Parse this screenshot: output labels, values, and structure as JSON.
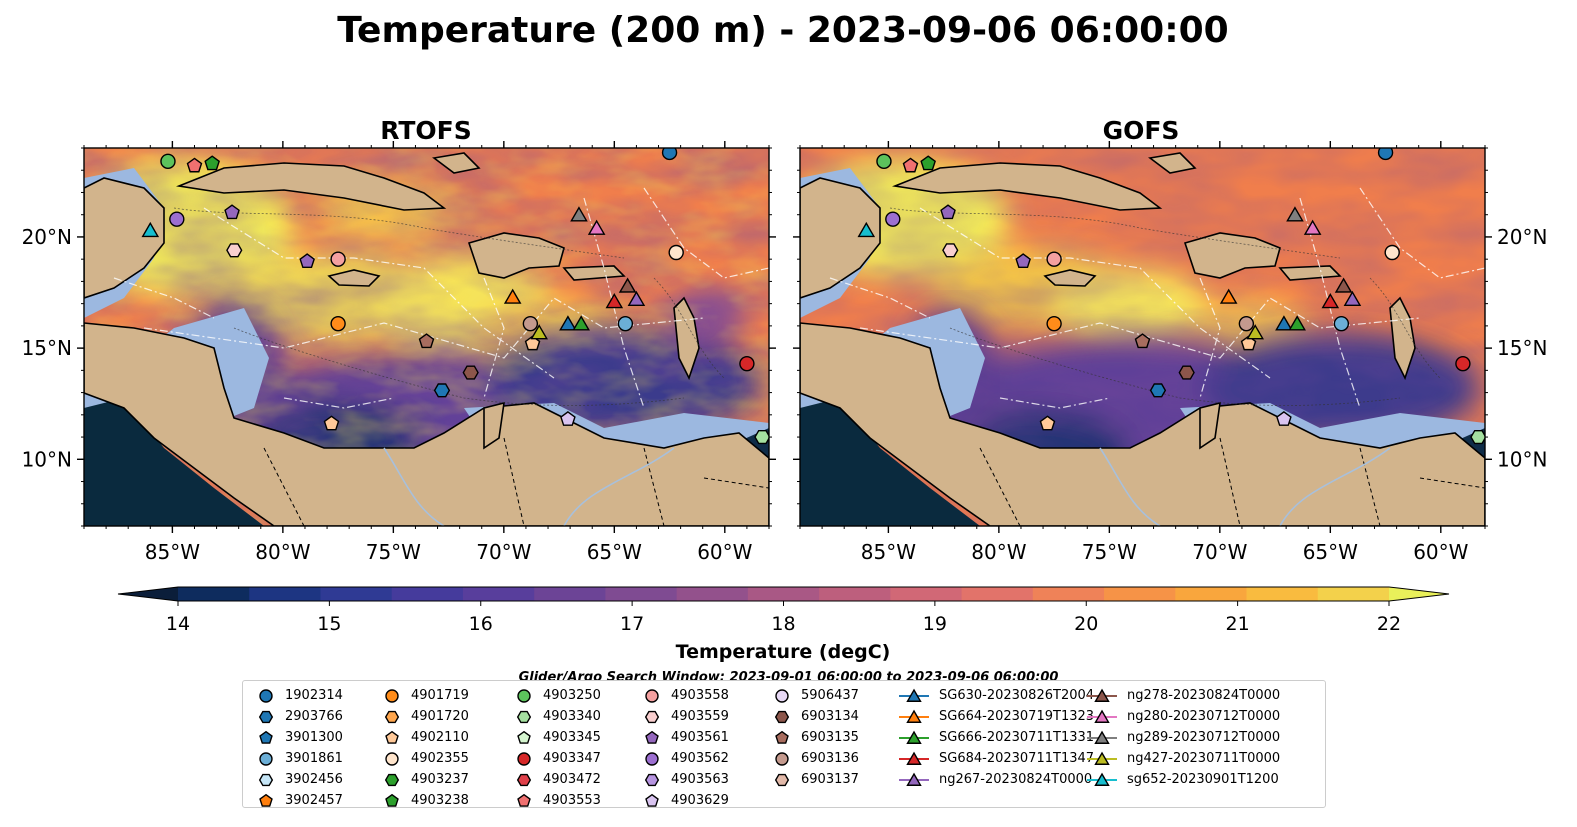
{
  "title": "Temperature (200 m) - 2023-09-06 06:00:00",
  "panels": [
    {
      "title": "RTOFS"
    },
    {
      "title": "GOFS"
    }
  ],
  "map": {
    "lon_range": [
      -89,
      -58
    ],
    "lat_range": [
      7,
      24
    ],
    "lon_ticks": [
      -85,
      -80,
      -75,
      -70,
      -65,
      -60
    ],
    "lon_tick_labels": [
      "85°W",
      "80°W",
      "75°W",
      "70°W",
      "65°W",
      "60°W"
    ],
    "lat_ticks": [
      10,
      15,
      20
    ],
    "lat_tick_labels": [
      "10°N",
      "15°N",
      "20°N"
    ],
    "colors": {
      "land": "#d2b48c",
      "shelf": "#9cb8e0",
      "deep_cold": "#0a2a3e"
    }
  },
  "colorbar": {
    "label": "Temperature (degC)",
    "ticks": [
      14,
      15,
      16,
      17,
      18,
      19,
      20,
      21,
      22
    ],
    "tick_labels": [
      "14",
      "15",
      "16",
      "17",
      "18",
      "19",
      "20",
      "21",
      "22"
    ],
    "colors": [
      "#0b1e3a",
      "#0e2c5e",
      "#1d3582",
      "#2f3a94",
      "#453b9c",
      "#583e9c",
      "#6c4496",
      "#7f4b92",
      "#93518c",
      "#a95885",
      "#bd5f7d",
      "#d16876",
      "#e2736a",
      "#ef8258",
      "#f69347",
      "#f9a63d",
      "#f9bb3f",
      "#f3d14b",
      "#e9f05a"
    ],
    "extend": "both"
  },
  "search_window": "Glider/Argo Search Window: 2023-09-01 06:00:00 to 2023-09-06 06:00:00",
  "legend": [
    {
      "label": "1902314",
      "marker": "circle",
      "color": "#1f77b4"
    },
    {
      "label": "2903766",
      "marker": "hexagon",
      "color": "#1f77b4"
    },
    {
      "label": "3901300",
      "marker": "pentagon",
      "color": "#1f77b4"
    },
    {
      "label": "3901861",
      "marker": "circle",
      "color": "#6baed6"
    },
    {
      "label": "3902456",
      "marker": "hexagon",
      "color": "#c6e6f7"
    },
    {
      "label": "3902457",
      "marker": "pentagon",
      "color": "#ff7f0e"
    },
    {
      "label": "4901719",
      "marker": "circle",
      "color": "#ff8c1a"
    },
    {
      "label": "4901720",
      "marker": "hexagon",
      "color": "#ffa64d"
    },
    {
      "label": "4902110",
      "marker": "pentagon",
      "color": "#ffc999"
    },
    {
      "label": "4902355",
      "marker": "circle",
      "color": "#ffe5cc"
    },
    {
      "label": "4903237",
      "marker": "hexagon",
      "color": "#2ca02c"
    },
    {
      "label": "4903238",
      "marker": "pentagon",
      "color": "#2ca02c"
    },
    {
      "label": "4903250",
      "marker": "circle",
      "color": "#5cc25c"
    },
    {
      "label": "4903340",
      "marker": "hexagon",
      "color": "#a5e0a0"
    },
    {
      "label": "4903345",
      "marker": "pentagon",
      "color": "#d5f5cf"
    },
    {
      "label": "4903347",
      "marker": "circle",
      "color": "#d62728"
    },
    {
      "label": "4903472",
      "marker": "hexagon",
      "color": "#e0404a"
    },
    {
      "label": "4903553",
      "marker": "pentagon",
      "color": "#f07070"
    },
    {
      "label": "4903558",
      "marker": "circle",
      "color": "#f4a0a0"
    },
    {
      "label": "4903559",
      "marker": "hexagon",
      "color": "#f9cfcf"
    },
    {
      "label": "4903561",
      "marker": "pentagon",
      "color": "#9467bd"
    },
    {
      "label": "4903562",
      "marker": "circle",
      "color": "#9c6fd0"
    },
    {
      "label": "4903563",
      "marker": "hexagon",
      "color": "#b694e0"
    },
    {
      "label": "4903629",
      "marker": "pentagon",
      "color": "#d9c4f0"
    },
    {
      "label": "5906437",
      "marker": "circle",
      "color": "#e7d8f5"
    },
    {
      "label": "6903134",
      "marker": "hexagon",
      "color": "#8c564b"
    },
    {
      "label": "6903135",
      "marker": "pentagon",
      "color": "#a86d5f"
    },
    {
      "label": "6903136",
      "marker": "circle",
      "color": "#c49a8e"
    },
    {
      "label": "6903137",
      "marker": "hexagon",
      "color": "#e2b9a9"
    },
    {
      "label": "SG630-20230826T2004",
      "marker": "triangle",
      "color": "#1f77b4"
    },
    {
      "label": "SG664-20230719T1323",
      "marker": "triangle",
      "color": "#ff7f0e"
    },
    {
      "label": "SG666-20230711T1331",
      "marker": "triangle",
      "color": "#2ca02c"
    },
    {
      "label": "SG684-20230711T1347",
      "marker": "triangle",
      "color": "#d62728"
    },
    {
      "label": "ng267-20230824T0000",
      "marker": "triangle",
      "color": "#9467bd"
    },
    {
      "label": "ng278-20230824T0000",
      "marker": "triangle",
      "color": "#8c564b"
    },
    {
      "label": "ng280-20230712T0000",
      "marker": "triangle",
      "color": "#e377c2"
    },
    {
      "label": "ng289-20230712T0000",
      "marker": "triangle",
      "color": "#7f7f7f"
    },
    {
      "label": "ng427-20230711T0000",
      "marker": "triangle",
      "color": "#bcbd22"
    },
    {
      "label": "sg652-20230901T1200",
      "marker": "triangle",
      "color": "#17becf"
    }
  ],
  "observations": [
    {
      "id": "1902314",
      "lon": -62.5,
      "lat": 23.8
    },
    {
      "id": "3901861",
      "lon": -64.5,
      "lat": 16.1
    },
    {
      "id": "4902355",
      "lon": -62.2,
      "lat": 19.3
    },
    {
      "id": "4903250",
      "lon": -85.2,
      "lat": 23.4
    },
    {
      "id": "4903238",
      "lon": -83.2,
      "lat": 23.3
    },
    {
      "id": "4903553",
      "lon": -84.0,
      "lat": 23.2
    },
    {
      "id": "4903562",
      "lon": -84.8,
      "lat": 20.8
    },
    {
      "id": "4903561",
      "lon": -82.3,
      "lat": 21.1
    },
    {
      "id": "4903559",
      "lon": -82.2,
      "lat": 19.4
    },
    {
      "id": "4903561",
      "lon": -78.9,
      "lat": 18.9
    },
    {
      "id": "4903558",
      "lon": -77.5,
      "lat": 19.0
    },
    {
      "id": "4901719",
      "lon": -77.5,
      "lat": 16.1
    },
    {
      "id": "4902110",
      "lon": -77.8,
      "lat": 11.6
    },
    {
      "id": "6903136",
      "lon": -68.8,
      "lat": 16.1
    },
    {
      "id": "4902110",
      "lon": -68.7,
      "lat": 15.2
    },
    {
      "id": "6903135",
      "lon": -73.5,
      "lat": 15.3
    },
    {
      "id": "6903134",
      "lon": -71.5,
      "lat": 13.9
    },
    {
      "id": "2903766",
      "lon": -72.8,
      "lat": 13.1
    },
    {
      "id": "4903629",
      "lon": -67.1,
      "lat": 11.8
    },
    {
      "id": "4903340",
      "lon": -58.3,
      "lat": 11.0
    },
    {
      "id": "4903347",
      "lon": -59.0,
      "lat": 14.3
    },
    {
      "id": "sg652-20230901T1200",
      "lon": -86.0,
      "lat": 20.3
    },
    {
      "id": "ng289-20230712T0000",
      "lon": -66.6,
      "lat": 21.0
    },
    {
      "id": "ng280-20230712T0000",
      "lon": -65.8,
      "lat": 20.4
    },
    {
      "id": "SG664-20230719T1323",
      "lon": -69.6,
      "lat": 17.3
    },
    {
      "id": "ng427-20230711T0000",
      "lon": -68.4,
      "lat": 15.7
    },
    {
      "id": "SG630-20230826T2004",
      "lon": -67.1,
      "lat": 16.1
    },
    {
      "id": "SG666-20230711T1331",
      "lon": -66.5,
      "lat": 16.1
    },
    {
      "id": "SG684-20230711T1347",
      "lon": -65.0,
      "lat": 17.1
    },
    {
      "id": "ng278-20230824T0000",
      "lon": -64.4,
      "lat": 17.8
    },
    {
      "id": "ng267-20230824T0000",
      "lon": -64.0,
      "lat": 17.2
    }
  ]
}
